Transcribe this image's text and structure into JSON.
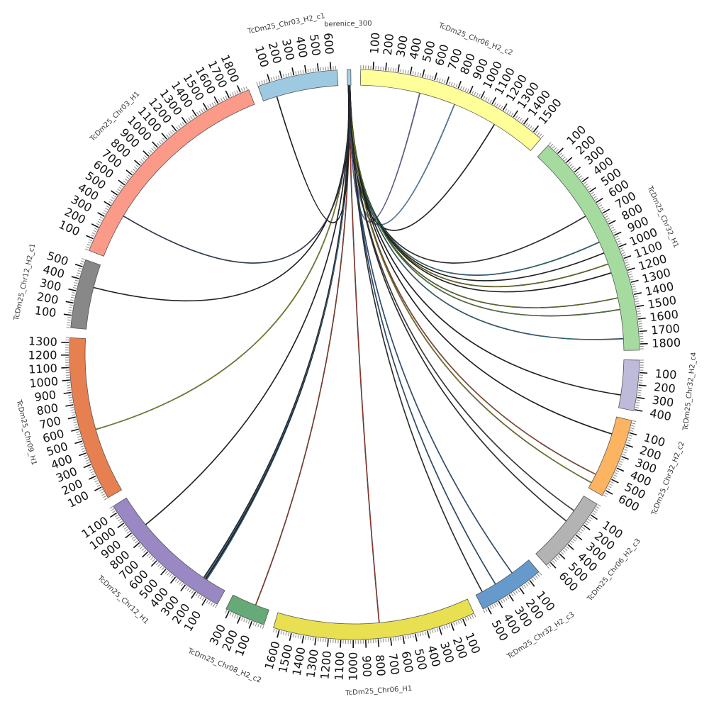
{
  "diagram": {
    "type": "circos",
    "tick_step": 100,
    "segments": [
      {
        "name": "berenice_300",
        "length": 30,
        "color": "#a6cee3",
        "ticks": false
      },
      {
        "name": "TcDm25_Chr06_H2_c2",
        "length": 1580,
        "color": "#ffff99",
        "ticks": true
      },
      {
        "name": "TcDm25_Chr32_H1",
        "length": 1850,
        "color": "#a6dba0",
        "ticks": true
      },
      {
        "name": "TcDm25_Chr32_H2_c4",
        "length": 410,
        "color": "#bebada",
        "ticks": true
      },
      {
        "name": "TcDm25_Chr32_H2_c2",
        "length": 650,
        "color": "#fdb462",
        "ticks": true
      },
      {
        "name": "TcDm25_Chr06_H2_c3",
        "length": 640,
        "color": "#b3b3b3",
        "ticks": true
      },
      {
        "name": "TcDm25_Chr32_H2_c3",
        "length": 540,
        "color": "#6699cc",
        "ticks": true
      },
      {
        "name": "TcDm25_Chr06_H1",
        "length": 1650,
        "color": "#e8e050",
        "ticks": true
      },
      {
        "name": "TcDm25_Chr08_H2_c2",
        "length": 330,
        "color": "#66aa77",
        "ticks": true
      },
      {
        "name": "TcDm25_Chr12_H1",
        "length": 1160,
        "color": "#9988c4",
        "ticks": true
      },
      {
        "name": "TcDm25_Chr09_H1",
        "length": 1340,
        "color": "#e68050",
        "ticks": true
      },
      {
        "name": "TcDm25_Chr12_H2_c1",
        "length": 560,
        "color": "#888888",
        "ticks": true
      },
      {
        "name": "TcDm25_Chr03_H1",
        "length": 1870,
        "color": "#fb9a88",
        "ticks": true
      },
      {
        "name": "TcDm25_Chr03_H2_c1",
        "length": 650,
        "color": "#9ecae1",
        "ticks": true
      }
    ],
    "links": [
      {
        "seg": "TcDm25_Chr06_H2_c2",
        "pos": 510,
        "color": "#7070c0"
      },
      {
        "seg": "TcDm25_Chr06_H2_c2",
        "pos": 820,
        "color": "#5a9bd4"
      },
      {
        "seg": "TcDm25_Chr06_H2_c2",
        "pos": 1200,
        "color": "#222222"
      },
      {
        "seg": "TcDm25_Chr32_H1",
        "pos": 650,
        "color": "#333333"
      },
      {
        "seg": "TcDm25_Chr32_H1",
        "pos": 900,
        "color": "#2c7c8c"
      },
      {
        "seg": "TcDm25_Chr32_H1",
        "pos": 1000,
        "color": "#222222"
      },
      {
        "seg": "TcDm25_Chr32_H1",
        "pos": 1100,
        "color": "#7a7a20"
      },
      {
        "seg": "TcDm25_Chr32_H1",
        "pos": 1180,
        "color": "#222222"
      },
      {
        "seg": "TcDm25_Chr32_H1",
        "pos": 1400,
        "color": "#6a7a20"
      },
      {
        "seg": "TcDm25_Chr32_H1",
        "pos": 1500,
        "color": "#5a8a40"
      },
      {
        "seg": "TcDm25_Chr32_H1",
        "pos": 1750,
        "color": "#2f6f7f"
      },
      {
        "seg": "TcDm25_Chr32_H2_c4",
        "pos": 300,
        "color": "#222222"
      },
      {
        "seg": "TcDm25_Chr32_H2_c2",
        "pos": 150,
        "color": "#222222"
      },
      {
        "seg": "TcDm25_Chr32_H2_c2",
        "pos": 520,
        "color": "#b05030"
      },
      {
        "seg": "TcDm25_Chr32_H2_c2",
        "pos": 600,
        "color": "#8a8a20"
      },
      {
        "seg": "TcDm25_Chr06_H2_c3",
        "pos": 150,
        "color": "#444444"
      },
      {
        "seg": "TcDm25_Chr06_H2_c3",
        "pos": 260,
        "color": "#333333"
      },
      {
        "seg": "TcDm25_Chr32_H2_c3",
        "pos": 180,
        "color": "#3060a0"
      },
      {
        "seg": "TcDm25_Chr32_H2_c3",
        "pos": 350,
        "color": "#2b5b8b"
      },
      {
        "seg": "TcDm25_Chr32_H2_c3",
        "pos": 480,
        "color": "#333333"
      },
      {
        "seg": "TcDm25_Chr06_H1",
        "pos": 780,
        "color": "#b03a2e"
      },
      {
        "seg": "TcDm25_Chr08_H2_c2",
        "pos": 120,
        "color": "#a0402a"
      },
      {
        "seg": "TcDm25_Chr12_H1",
        "pos": 180,
        "color": "#2c6e9e"
      },
      {
        "seg": "TcDm25_Chr12_H1",
        "pos": 190,
        "color": "#222222"
      },
      {
        "seg": "TcDm25_Chr12_H1",
        "pos": 200,
        "color": "#4a8aba"
      },
      {
        "seg": "TcDm25_Chr12_H1",
        "pos": 210,
        "color": "#333333"
      },
      {
        "seg": "TcDm25_Chr12_H1",
        "pos": 880,
        "color": "#222222"
      },
      {
        "seg": "TcDm25_Chr09_H1",
        "pos": 560,
        "color": "#9a9a20"
      },
      {
        "seg": "TcDm25_Chr12_H2_c1",
        "pos": 360,
        "color": "#222222"
      },
      {
        "seg": "TcDm25_Chr03_H1",
        "pos": 380,
        "color": "#334466"
      },
      {
        "seg": "TcDm25_Chr03_H2_c1",
        "pos": 120,
        "color": "#222222"
      }
    ]
  }
}
